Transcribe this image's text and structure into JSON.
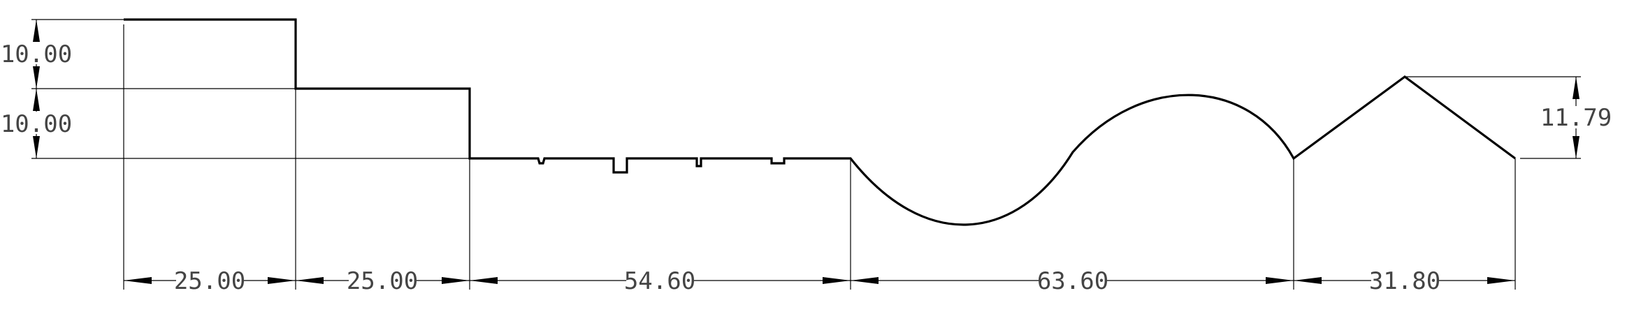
{
  "drawing": {
    "dimensions": {
      "vertical_upper": "10.00",
      "vertical_lower": "10.00",
      "vertical_right": "11.79",
      "horizontal_1": "25.00",
      "horizontal_2": "25.00",
      "horizontal_3": "54.60",
      "horizontal_4": "63.60",
      "horizontal_5": "31.80"
    },
    "colors": {
      "line": "#000000",
      "text": "#444444",
      "background": "#ffffff"
    }
  }
}
